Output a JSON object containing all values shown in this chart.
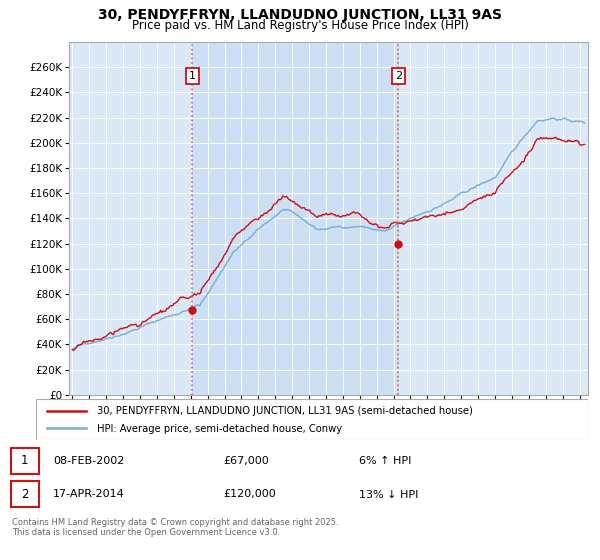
{
  "title": "30, PENDYFFRYN, LLANDUDNO JUNCTION, LL31 9AS",
  "subtitle": "Price paid vs. HM Land Registry's House Price Index (HPI)",
  "ylim": [
    0,
    280000
  ],
  "yticks": [
    0,
    20000,
    40000,
    60000,
    80000,
    100000,
    120000,
    140000,
    160000,
    180000,
    200000,
    220000,
    240000,
    260000
  ],
  "background_color": "#dbe8f7",
  "fig_bg": "#ffffff",
  "grid_color": "#ffffff",
  "sale1_x": 2002.1,
  "sale1_y": 67000,
  "sale2_x": 2014.29,
  "sale2_y": 120000,
  "vline_color": "#e06060",
  "red_line_color": "#cc1111",
  "blue_line_color": "#7aadd4",
  "shade_color": "#ccdff5",
  "legend_sale": "30, PENDYFFRYN, LLANDUDNO JUNCTION, LL31 9AS (semi-detached house)",
  "legend_hpi": "HPI: Average price, semi-detached house, Conwy",
  "footer": "Contains HM Land Registry data © Crown copyright and database right 2025.\nThis data is licensed under the Open Government Licence v3.0.",
  "xmin": 1994.8,
  "xmax": 2025.5
}
